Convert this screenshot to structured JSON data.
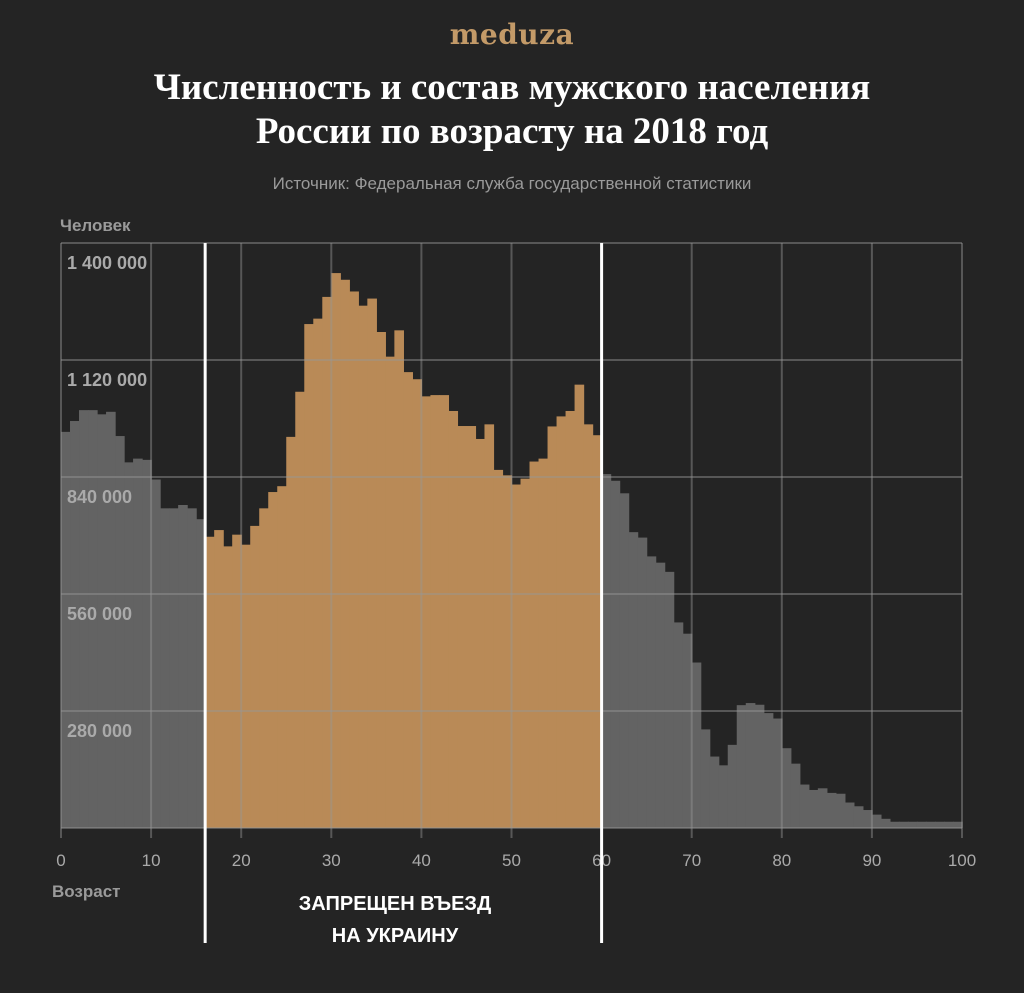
{
  "logo": "meduza",
  "title_line1": "Численность и состав мужского населения",
  "title_line2": "России по возрасту на 2018 год",
  "source": "Источник: Федеральная служба государственной статистики",
  "colors": {
    "background": "#242424",
    "grid": "#555555",
    "highlight": "#b98a57",
    "base": "#636363",
    "marker": "#ffffff",
    "logo": "#c39a68"
  },
  "chart_data": {
    "type": "bar",
    "ylabel": "Человек",
    "xlabel": "Возраст",
    "xlim": [
      0,
      100
    ],
    "ylim": [
      0,
      1400000
    ],
    "xticks": [
      0,
      10,
      20,
      30,
      40,
      50,
      60,
      70,
      80,
      90,
      100
    ],
    "yticks": [
      280000,
      560000,
      840000,
      1120000,
      1400000
    ],
    "ytick_labels": [
      "280 000",
      "560 000",
      "840 000",
      "1 120 000",
      "1 400 000"
    ],
    "grid": true,
    "highlight_range": [
      16,
      60
    ],
    "annotation_line1": "ЗАПРЕЩЕН ВЪЕЗД",
    "annotation_line2": "НА УКРАИНУ",
    "ages": [
      0,
      1,
      2,
      3,
      4,
      5,
      6,
      7,
      8,
      9,
      10,
      11,
      12,
      13,
      14,
      15,
      16,
      17,
      18,
      19,
      20,
      21,
      22,
      23,
      24,
      25,
      26,
      27,
      28,
      29,
      30,
      31,
      32,
      33,
      34,
      35,
      36,
      37,
      38,
      39,
      40,
      41,
      42,
      43,
      44,
      45,
      46,
      47,
      48,
      49,
      50,
      51,
      52,
      53,
      54,
      55,
      56,
      57,
      58,
      59,
      60,
      61,
      62,
      63,
      64,
      65,
      66,
      67,
      68,
      69,
      70,
      71,
      72,
      73,
      74,
      75,
      76,
      77,
      78,
      79,
      80,
      81,
      82,
      83,
      84,
      85,
      86,
      87,
      88,
      89,
      90,
      91,
      92,
      93,
      94,
      95,
      96,
      97,
      98,
      99
    ],
    "values": [
      948000,
      974000,
      1000000,
      1000000,
      990000,
      996000,
      938000,
      875000,
      884000,
      881000,
      834000,
      765000,
      765000,
      773000,
      765000,
      739000,
      697000,
      713000,
      674000,
      702000,
      678000,
      723000,
      765000,
      804000,
      818000,
      936000,
      1044000,
      1206000,
      1219000,
      1271000,
      1328000,
      1312000,
      1284000,
      1250000,
      1267000,
      1187000,
      1128000,
      1191000,
      1091000,
      1074000,
      1033000,
      1036000,
      1036000,
      998000,
      962000,
      962000,
      931000,
      966000,
      857000,
      844000,
      822000,
      836000,
      877000,
      884000,
      961000,
      985000,
      998000,
      1061000,
      966000,
      940000,
      847000,
      831000,
      801000,
      708000,
      695000,
      650000,
      635000,
      613000,
      492000,
      465000,
      396000,
      236000,
      171000,
      150000,
      199000,
      294000,
      299000,
      295000,
      275000,
      262000,
      191000,
      154000,
      104000,
      91000,
      95000,
      84000,
      82000,
      61000,
      52000,
      43000,
      32000,
      22000,
      15000,
      15000,
      15000,
      15000,
      15000,
      15000,
      15000,
      15000
    ]
  }
}
